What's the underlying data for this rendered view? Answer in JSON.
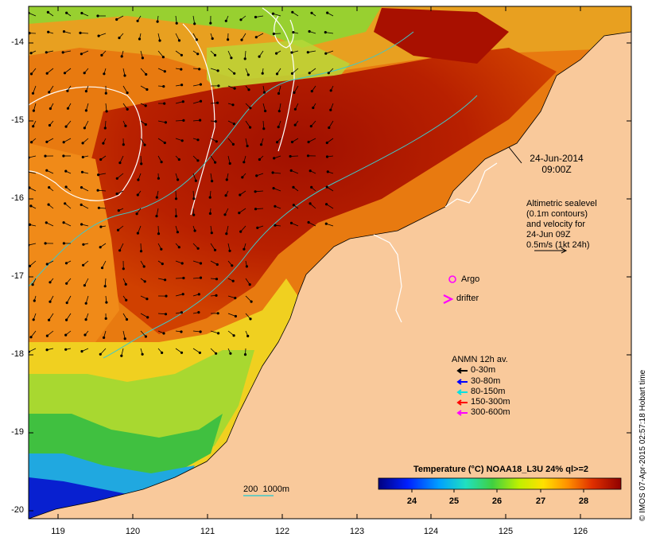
{
  "map": {
    "y_axis_labels": [
      "-14",
      "-15",
      "-16",
      "-17",
      "-18",
      "-19",
      "-20"
    ],
    "x_axis_labels": [
      "119",
      "120",
      "121",
      "122",
      "123",
      "124",
      "125",
      "126"
    ],
    "timestamp": [
      "24-Jun-2014",
      "09:00Z"
    ],
    "altimetry_note": [
      "Altimetric sealevel",
      "(0.1m contours)",
      "and velocity for",
      "24-Jun 09Z",
      "0.5m/s (1kt 24h)"
    ],
    "argo_label": "Argo",
    "drifter_label": "drifter",
    "anmn_title": "ANMN 12h av.",
    "anmn_legend": [
      {
        "label": "0-30m",
        "color": "#000000"
      },
      {
        "label": "30-80m",
        "color": "#0000ff"
      },
      {
        "label": "80-150m",
        "color": "#00e0e0"
      },
      {
        "label": "150-300m",
        "color": "#ff0000"
      },
      {
        "label": "300-600m",
        "color": "#ff00ff"
      }
    ],
    "isobath_label": "200  1000m",
    "colorbar_title": "Temperature (°C) NOAA18_L3U 24% ql>=2",
    "colorbar_ticks": [
      "24",
      "25",
      "26",
      "27",
      "28"
    ],
    "credit": "© IMOS 07-Apr-2015 02:57:18 Hobart time",
    "colors": {
      "land": "#f9c99b",
      "argo": "#ff00ff",
      "drifter": "#ff00ff",
      "contour": "#ffffff",
      "isobath": "#40c8c8"
    }
  }
}
